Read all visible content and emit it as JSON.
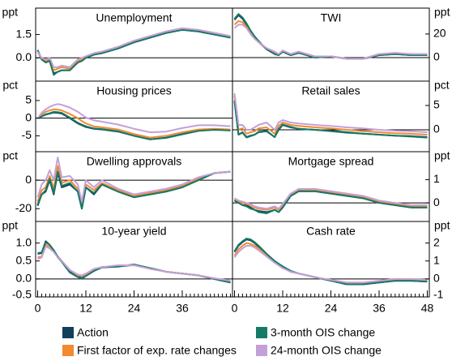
{
  "chart_data": [
    {
      "type": "line",
      "title": "Unemployment",
      "unit": "ppt",
      "side": "left",
      "xlim": [
        -0.5,
        48.5
      ],
      "ylim": [
        -1.5,
        3.2
      ],
      "yticks": [
        {
          "value": 1.5,
          "label": "1.5"
        },
        {
          "value": 0,
          "label": "0.0"
        }
      ],
      "x": [
        0,
        1,
        2,
        3,
        4,
        5,
        6,
        8,
        10,
        11,
        12,
        14,
        16,
        20,
        24,
        28,
        32,
        36,
        40,
        44,
        48
      ],
      "series": [
        {
          "name": "Action",
          "color": "#12405a",
          "values": [
            0.5,
            -0.1,
            -0.3,
            -0.2,
            -1.0,
            -0.9,
            -0.8,
            -0.8,
            -0.3,
            -0.2,
            0.0,
            0.2,
            0.3,
            0.6,
            1.0,
            1.3,
            1.6,
            1.8,
            1.7,
            1.5,
            1.3
          ]
        },
        {
          "name": "First factor of exp. rate changes",
          "color": "#f28a30",
          "values": [
            0.4,
            -0.1,
            -0.2,
            -0.1,
            -0.8,
            -0.7,
            -0.6,
            -0.7,
            -0.2,
            -0.1,
            0.1,
            0.2,
            0.4,
            0.7,
            1.1,
            1.4,
            1.7,
            1.9,
            1.8,
            1.6,
            1.4
          ]
        },
        {
          "name": "3-month OIS change",
          "color": "#157a66",
          "values": [
            0.5,
            -0.1,
            -0.3,
            -0.2,
            -1.1,
            -0.9,
            -0.8,
            -0.8,
            -0.3,
            -0.2,
            0.0,
            0.2,
            0.3,
            0.6,
            1.0,
            1.3,
            1.6,
            1.8,
            1.7,
            1.5,
            1.3
          ]
        },
        {
          "name": "24-month OIS change",
          "color": "#c4a0d8",
          "values": [
            0.4,
            0.0,
            -0.1,
            0.0,
            -0.6,
            -0.6,
            -0.5,
            -0.6,
            -0.1,
            0.0,
            0.1,
            0.3,
            0.4,
            0.7,
            1.1,
            1.4,
            1.7,
            1.9,
            1.8,
            1.6,
            1.4
          ]
        }
      ]
    },
    {
      "type": "line",
      "title": "TWI",
      "unit": "ppt",
      "side": "right",
      "xlim": [
        -0.5,
        48.5
      ],
      "ylim": [
        -20,
        42
      ],
      "yticks": [
        20,
        0
      ],
      "x": [
        0,
        1,
        2,
        3,
        4,
        5,
        6,
        8,
        10,
        11,
        12,
        14,
        16,
        20,
        24,
        28,
        32,
        36,
        40,
        44,
        48
      ],
      "series": [
        {
          "values": [
            32,
            36,
            33,
            28,
            22,
            18,
            14,
            7,
            3,
            2,
            5,
            2,
            4,
            0,
            1,
            -1,
            -1,
            2,
            3,
            2,
            2
          ]
        },
        {
          "values": [
            28,
            31,
            30,
            26,
            21,
            17,
            13,
            7,
            4,
            2,
            6,
            3,
            5,
            1,
            1,
            -1,
            -1,
            3,
            3,
            3,
            2
          ]
        },
        {
          "values": [
            33,
            37,
            34,
            29,
            23,
            18,
            14,
            7,
            3,
            2,
            5,
            2,
            4,
            0,
            1,
            -1,
            -1,
            2,
            3,
            2,
            2
          ]
        },
        {
          "values": [
            25,
            28,
            28,
            25,
            20,
            16,
            13,
            8,
            5,
            3,
            6,
            3,
            5,
            1,
            1,
            -1,
            -1,
            3,
            4,
            3,
            3
          ]
        }
      ]
    },
    {
      "type": "line",
      "title": "Housing prices",
      "unit": "pct",
      "side": "left",
      "xlim": [
        -0.5,
        48.5
      ],
      "ylim": [
        -9.5,
        10.5
      ],
      "yticks": [
        5,
        0,
        -5
      ],
      "x": [
        0,
        1,
        2,
        3,
        4,
        5,
        6,
        8,
        10,
        11,
        12,
        14,
        16,
        20,
        24,
        28,
        32,
        36,
        40,
        44,
        48
      ],
      "series": [
        {
          "values": [
            0,
            0.5,
            1.0,
            1.3,
            1.6,
            1.5,
            1.3,
            0,
            -1.5,
            -2,
            -2.5,
            -3,
            -3.2,
            -3.8,
            -5,
            -6,
            -5.5,
            -4.5,
            -3.5,
            -3.2,
            -3.4
          ]
        },
        {
          "values": [
            0,
            1,
            1.8,
            2.2,
            2.5,
            2.4,
            2.2,
            1.2,
            0,
            -0.8,
            -1.5,
            -2.3,
            -2.6,
            -3.2,
            -4.5,
            -5.5,
            -5,
            -4,
            -3.2,
            -3,
            -3.2
          ]
        },
        {
          "values": [
            0,
            0.5,
            1.1,
            1.4,
            1.8,
            1.7,
            1.5,
            0.2,
            -1.3,
            -1.8,
            -2.3,
            -2.9,
            -3.1,
            -3.7,
            -5,
            -6,
            -5.6,
            -4.6,
            -3.6,
            -3.3,
            -3.5
          ]
        },
        {
          "values": [
            0,
            1.5,
            2.5,
            3.2,
            3.7,
            4,
            3.8,
            3,
            1.8,
            1,
            0.2,
            -0.6,
            -1,
            -1.8,
            -3,
            -4,
            -3.8,
            -2.8,
            -2,
            -2,
            -2.3
          ]
        }
      ]
    },
    {
      "type": "line",
      "title": "Retail sales",
      "unit": "pct",
      "side": "right",
      "xlim": [
        -0.5,
        48.5
      ],
      "ylim": [
        -4.5,
        10
      ],
      "yticks": [
        5,
        0
      ],
      "x": [
        0,
        1,
        2,
        3,
        4,
        5,
        6,
        8,
        10,
        11,
        12,
        14,
        16,
        20,
        24,
        28,
        32,
        36,
        40,
        44,
        48
      ],
      "series": [
        {
          "values": [
            6,
            -1,
            -0.5,
            -1.5,
            -1.2,
            -1,
            -0.5,
            -0.3,
            -1.5,
            0,
            1,
            0.5,
            0.2,
            0,
            -0.2,
            -0.5,
            -0.8,
            -1,
            -1.2,
            -1.3,
            -1.5
          ]
        },
        {
          "values": [
            7,
            0,
            0.3,
            -0.8,
            -0.5,
            -0.3,
            0.3,
            0.5,
            -0.8,
            0.8,
            1.5,
            1,
            0.8,
            0.5,
            0.3,
            0,
            -0.3,
            -0.5,
            -0.7,
            -0.8,
            -1
          ]
        },
        {
          "values": [
            6,
            -1,
            -0.6,
            -1.6,
            -1.3,
            -1,
            -0.4,
            -0.2,
            -1.5,
            0.2,
            1.1,
            0.6,
            0.2,
            0,
            -0.3,
            -0.6,
            -0.8,
            -1,
            -1.2,
            -1.4,
            -1.6
          ]
        },
        {
          "values": [
            7.5,
            1,
            1,
            0,
            0,
            0.5,
            1,
            1.5,
            0,
            1.5,
            2,
            1.5,
            1.3,
            1,
            0.8,
            0.5,
            0.3,
            0,
            -0.2,
            -0.3,
            -0.5
          ]
        }
      ]
    },
    {
      "type": "line",
      "title": "Dwelling approvals",
      "unit": "pct",
      "side": "left",
      "xlim": [
        -0.5,
        48.5
      ],
      "ylim": [
        -29,
        20
      ],
      "yticks": [
        0,
        -20
      ],
      "x": [
        0,
        1,
        2,
        3,
        4,
        5,
        6,
        8,
        10,
        11,
        12,
        14,
        16,
        20,
        24,
        28,
        32,
        36,
        40,
        44,
        48
      ],
      "series": [
        {
          "values": [
            -18,
            -10,
            -8,
            0,
            -10,
            5,
            -5,
            -3,
            -8,
            -20,
            -5,
            -10,
            -3,
            -8,
            -12,
            -10,
            -8,
            -5,
            0,
            5,
            6
          ]
        },
        {
          "values": [
            -15,
            -7,
            -5,
            3,
            -6,
            10,
            -2,
            0,
            -6,
            -18,
            -3,
            -7,
            -2,
            -7,
            -11,
            -9,
            -7,
            -4,
            1,
            5,
            6
          ]
        },
        {
          "values": [
            -17,
            -10,
            -7,
            1,
            -9,
            6,
            -4,
            -2,
            -8,
            -20,
            -5,
            -9,
            -3,
            -8,
            -12,
            -10,
            -8,
            -5,
            0,
            5,
            6
          ]
        },
        {
          "values": [
            -12,
            -3,
            0,
            7,
            0,
            16,
            2,
            3,
            -3,
            -15,
            0,
            -5,
            0,
            -6,
            -10,
            -8,
            -6,
            -3,
            2,
            5,
            6
          ]
        }
      ]
    },
    {
      "type": "line",
      "title": "Mortgage spread",
      "unit": "ppt",
      "side": "right",
      "xlim": [
        -0.5,
        48.5
      ],
      "ylim": [
        -0.8,
        2.2
      ],
      "yticks": [
        1,
        0
      ],
      "x": [
        0,
        1,
        2,
        3,
        4,
        5,
        6,
        8,
        10,
        11,
        12,
        14,
        16,
        20,
        24,
        28,
        32,
        36,
        40,
        44,
        48
      ],
      "series": [
        {
          "values": [
            0.1,
            0.0,
            -0.1,
            -0.1,
            -0.2,
            -0.3,
            -0.35,
            -0.4,
            -0.3,
            -0.4,
            -0.2,
            0.3,
            0.5,
            0.5,
            0.4,
            0.3,
            0.2,
            0.0,
            -0.1,
            -0.2,
            -0.2
          ]
        },
        {
          "values": [
            0.15,
            0.05,
            0,
            -0.05,
            -0.1,
            -0.2,
            -0.25,
            -0.3,
            -0.2,
            -0.3,
            -0.1,
            0.35,
            0.55,
            0.55,
            0.45,
            0.35,
            0.25,
            0.05,
            -0.05,
            -0.15,
            -0.15
          ]
        },
        {
          "values": [
            0.1,
            0.0,
            -0.1,
            -0.15,
            -0.25,
            -0.3,
            -0.4,
            -0.45,
            -0.3,
            -0.4,
            -0.2,
            0.3,
            0.5,
            0.5,
            0.4,
            0.3,
            0.2,
            0.0,
            -0.1,
            -0.2,
            -0.2
          ]
        },
        {
          "values": [
            0.2,
            0.1,
            0.05,
            0,
            -0.05,
            -0.15,
            -0.2,
            -0.25,
            -0.15,
            -0.25,
            -0.05,
            0.4,
            0.6,
            0.6,
            0.5,
            0.4,
            0.3,
            0.1,
            0,
            -0.1,
            -0.1
          ]
        }
      ]
    },
    {
      "type": "line",
      "title": "10-year yield",
      "unit": "ppt",
      "side": "left",
      "xlim": [
        -0.5,
        48.5
      ],
      "ylim": [
        -0.5,
        1.6
      ],
      "yticks": [
        {
          "value": 1,
          "label": "1.0"
        },
        0.5,
        {
          "value": 0,
          "label": "0.0"
        },
        -0.5
      ],
      "xticks": [
        0,
        12,
        24,
        36
      ],
      "minor_ticks": true,
      "x": [
        0,
        1,
        2,
        3,
        4,
        5,
        6,
        8,
        10,
        11,
        12,
        14,
        16,
        20,
        24,
        28,
        32,
        36,
        40,
        44,
        48
      ],
      "series": [
        {
          "values": [
            0.7,
            0.72,
            1.05,
            0.95,
            0.8,
            0.62,
            0.5,
            0.2,
            0.08,
            0.02,
            0.1,
            0.25,
            0.33,
            0.35,
            0.4,
            0.3,
            0.2,
            0.15,
            0.1,
            0.0,
            -0.1
          ]
        },
        {
          "values": [
            0.6,
            0.62,
            0.95,
            0.9,
            0.78,
            0.6,
            0.5,
            0.25,
            0.1,
            0.08,
            0.12,
            0.25,
            0.33,
            0.35,
            0.38,
            0.3,
            0.2,
            0.15,
            0.1,
            0.0,
            -0.08
          ]
        },
        {
          "values": [
            0.72,
            0.74,
            1.02,
            0.95,
            0.8,
            0.6,
            0.48,
            0.18,
            0.05,
            0.0,
            0.08,
            0.22,
            0.32,
            0.34,
            0.4,
            0.3,
            0.2,
            0.15,
            0.1,
            0.0,
            -0.1
          ]
        },
        {
          "values": [
            0.55,
            0.6,
            0.9,
            0.85,
            0.75,
            0.6,
            0.5,
            0.25,
            0.12,
            0.1,
            0.15,
            0.28,
            0.33,
            0.38,
            0.38,
            0.28,
            0.2,
            0.15,
            0.1,
            0.02,
            -0.05
          ]
        }
      ]
    },
    {
      "type": "line",
      "title": "Cash rate",
      "unit": "ppt",
      "side": "right",
      "xlim": [
        -0.5,
        48.5
      ],
      "ylim": [
        -1,
        3.2
      ],
      "yticks": [
        2,
        1,
        0,
        -1
      ],
      "xticks": [
        0,
        12,
        24,
        36,
        48
      ],
      "minor_ticks": true,
      "x": [
        0,
        1,
        2,
        3,
        4,
        5,
        6,
        8,
        10,
        11,
        12,
        14,
        16,
        20,
        24,
        28,
        32,
        36,
        40,
        44,
        48
      ],
      "series": [
        {
          "values": [
            1.5,
            1.85,
            2.05,
            2.2,
            2.15,
            2.0,
            1.8,
            1.35,
            0.95,
            0.8,
            0.65,
            0.4,
            0.3,
            0.1,
            -0.1,
            -0.3,
            -0.3,
            -0.2,
            -0.1,
            -0.1,
            -0.15
          ]
        },
        {
          "values": [
            1.3,
            1.65,
            1.85,
            2.0,
            1.95,
            1.85,
            1.7,
            1.3,
            0.95,
            0.8,
            0.65,
            0.4,
            0.3,
            0.1,
            -0.1,
            -0.25,
            -0.25,
            -0.15,
            -0.05,
            -0.05,
            -0.1
          ]
        },
        {
          "values": [
            1.55,
            1.9,
            2.1,
            2.25,
            2.2,
            2.05,
            1.85,
            1.4,
            1.0,
            0.85,
            0.7,
            0.45,
            0.3,
            0.1,
            -0.1,
            -0.3,
            -0.3,
            -0.2,
            -0.1,
            -0.1,
            -0.15
          ]
        },
        {
          "values": [
            1.2,
            1.5,
            1.7,
            1.85,
            1.85,
            1.75,
            1.6,
            1.25,
            0.9,
            0.75,
            0.6,
            0.4,
            0.3,
            0.1,
            -0.05,
            -0.2,
            -0.2,
            -0.1,
            0,
            0,
            -0.05
          ]
        }
      ]
    }
  ]
}
